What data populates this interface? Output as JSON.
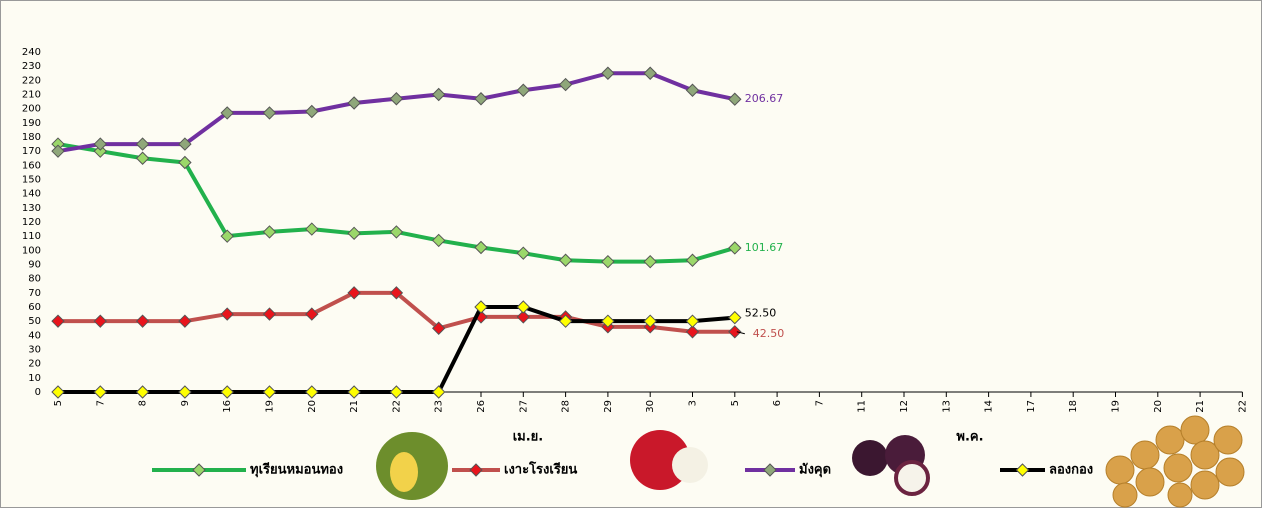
{
  "chart_data": {
    "type": "line",
    "categories": [
      "5",
      "7",
      "8",
      "9",
      "16",
      "19",
      "20",
      "21",
      "22",
      "23",
      "26",
      "27",
      "28",
      "29",
      "30",
      "3",
      "5",
      "6",
      "7",
      "11",
      "12",
      "13",
      "14",
      "17",
      "18",
      "19",
      "20",
      "21",
      "22"
    ],
    "x_groups": [
      "เม.ย.",
      "พ.ค."
    ],
    "ylim": [
      0,
      240
    ],
    "yticks": [
      0,
      10,
      20,
      30,
      40,
      50,
      60,
      70,
      80,
      90,
      100,
      110,
      120,
      130,
      140,
      150,
      160,
      170,
      180,
      190,
      200,
      210,
      220,
      230,
      240
    ],
    "series": [
      {
        "name": "ทุเรียนหมอนทอง",
        "color": "#22b14c",
        "marker_color": "#9bd76a",
        "values": [
          175,
          170,
          165,
          162,
          110,
          113,
          115,
          112,
          113,
          107,
          102,
          98,
          93,
          92,
          92,
          93,
          101.67,
          null,
          null,
          null,
          null,
          null,
          null,
          null,
          null,
          null,
          null,
          null,
          null
        ],
        "value_labels": [
          null,
          null,
          null,
          null,
          null,
          null,
          null,
          null,
          null,
          null,
          null,
          null,
          null,
          null,
          null,
          null,
          "101.67",
          null,
          null,
          null,
          null,
          null,
          null,
          null,
          null,
          null,
          null,
          null,
          null
        ]
      },
      {
        "name": "เงาะโรงเรียน",
        "color": "#c0504d",
        "marker_color": "#e8141c",
        "values": [
          50,
          50,
          50,
          50,
          55,
          55,
          55,
          70,
          70,
          45,
          53,
          53,
          53,
          46,
          46,
          42.5,
          42.5,
          null,
          null,
          null,
          null,
          null,
          null,
          null,
          null,
          null,
          null,
          null,
          null
        ],
        "value_labels": [
          null,
          null,
          null,
          null,
          null,
          null,
          null,
          null,
          null,
          null,
          null,
          null,
          null,
          null,
          null,
          null,
          "42.50",
          null,
          null,
          null,
          null,
          null,
          null,
          null,
          null,
          null,
          null,
          null,
          null
        ]
      },
      {
        "name": "มังคุด",
        "color": "#7030a0",
        "marker_color": "#8fa77a",
        "values": [
          170,
          175,
          175,
          175,
          197,
          197,
          198,
          204,
          207,
          210,
          207,
          213,
          217,
          225,
          225,
          213,
          206.67,
          null,
          null,
          null,
          null,
          null,
          null,
          null,
          null,
          null,
          null,
          null,
          null
        ],
        "value_labels": [
          null,
          null,
          null,
          null,
          null,
          null,
          null,
          null,
          null,
          null,
          null,
          null,
          null,
          null,
          null,
          null,
          "206.67",
          null,
          null,
          null,
          null,
          null,
          null,
          null,
          null,
          null,
          null,
          null,
          null
        ]
      },
      {
        "name": "ลองกอง",
        "color": "#000000",
        "marker_color": "#ffff00",
        "values": [
          0,
          0,
          0,
          0,
          0,
          0,
          0,
          0,
          0,
          0,
          60,
          60,
          50,
          50,
          50,
          50,
          52.5,
          null,
          null,
          null,
          null,
          null,
          null,
          null,
          null,
          null,
          null,
          null,
          null
        ],
        "value_labels": [
          null,
          null,
          null,
          null,
          null,
          null,
          null,
          null,
          null,
          null,
          null,
          null,
          null,
          null,
          null,
          null,
          "52.50",
          null,
          null,
          null,
          null,
          null,
          null,
          null,
          null,
          null,
          null,
          null,
          null
        ]
      }
    ]
  }
}
